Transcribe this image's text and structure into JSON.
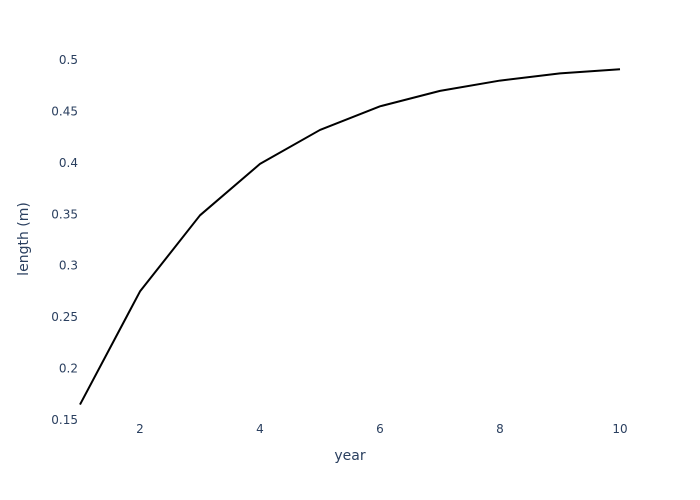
{
  "chart_data": {
    "type": "line",
    "title": "",
    "xlabel": "year",
    "ylabel": "length (m)",
    "x": [
      1,
      2,
      3,
      4,
      5,
      6,
      7,
      8,
      9,
      10
    ],
    "series": [
      {
        "values": [
          0.165,
          0.275,
          0.349,
          0.399,
          0.432,
          0.455,
          0.47,
          0.48,
          0.487,
          0.491
        ]
      }
    ],
    "xlim": [
      1,
      10
    ],
    "ylim": [
      0.15,
      0.5
    ],
    "x_ticks": [
      2,
      4,
      6,
      8,
      10
    ],
    "x_tick_labels": [
      "2",
      "4",
      "6",
      "8",
      "10"
    ],
    "y_ticks": [
      0.15,
      0.2,
      0.25,
      0.3,
      0.35,
      0.4,
      0.45,
      0.5
    ],
    "y_tick_labels": [
      "0.15",
      "0.2",
      "0.25",
      "0.3",
      "0.35",
      "0.4",
      "0.45",
      "0.5"
    ],
    "grid": false,
    "line_color": "#000000",
    "text_color": "#2a3f5f"
  }
}
